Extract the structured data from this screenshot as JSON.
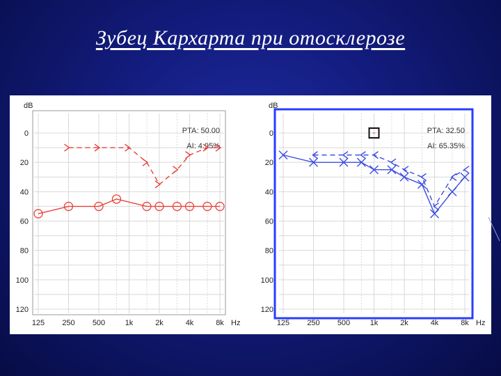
{
  "slide": {
    "title": "Зубец Кархарта при отосклерозе"
  },
  "chart_data": [
    {
      "type": "line",
      "ylabel": "dB",
      "xunit": "Hz",
      "y_ticks": [
        "0",
        "20",
        "40",
        "60",
        "80",
        "100",
        "120"
      ],
      "ylim": [
        0,
        120
      ],
      "y_inverted": true,
      "x_ticks": [
        "125",
        "250",
        "500",
        "1k",
        "2k",
        "4k",
        "8k"
      ],
      "x_scale": "log",
      "grid": true,
      "color": "#e8423a",
      "frame_color": "#9a9a9a",
      "annotations": [
        "PTA: 50.00",
        "AI: 4.95%"
      ],
      "series": [
        {
          "marker": "circle",
          "line": "solid",
          "points": [
            [
              125,
              55
            ],
            [
              250,
              50
            ],
            [
              500,
              50
            ],
            [
              750,
              45
            ],
            [
              1500,
              50
            ],
            [
              2000,
              50
            ],
            [
              3000,
              50
            ],
            [
              4000,
              50
            ],
            [
              6000,
              50
            ],
            [
              8000,
              50
            ]
          ]
        },
        {
          "marker": "chevron",
          "line": "dashed",
          "points": [
            [
              250,
              10
            ],
            [
              500,
              10
            ],
            [
              1000,
              10
            ],
            [
              1500,
              20
            ],
            [
              2000,
              35
            ],
            [
              3000,
              25
            ],
            [
              4000,
              15
            ],
            [
              6000,
              10
            ],
            [
              8000,
              10
            ]
          ]
        }
      ]
    },
    {
      "type": "line",
      "ylabel": "dB",
      "xunit": "Hz",
      "y_ticks": [
        "0",
        "20",
        "40",
        "60",
        "80",
        "100",
        "120"
      ],
      "ylim": [
        0,
        120
      ],
      "y_inverted": true,
      "x_ticks": [
        "125",
        "250",
        "500",
        "1k",
        "2k",
        "4k",
        "8k"
      ],
      "x_scale": "log",
      "grid": true,
      "color": "#3c4ee0",
      "frame_color": "#2a3cff",
      "annotations": [
        "PTA: 32.50",
        "AI: 65.35%"
      ],
      "series": [
        {
          "marker": "cross",
          "line": "solid",
          "points": [
            [
              125,
              15
            ],
            [
              250,
              20
            ],
            [
              500,
              20
            ],
            [
              750,
              20
            ],
            [
              1000,
              25
            ],
            [
              1500,
              25
            ],
            [
              2000,
              30
            ],
            [
              3000,
              35
            ],
            [
              4000,
              55
            ],
            [
              6000,
              40
            ],
            [
              8000,
              30
            ]
          ]
        },
        {
          "marker": "chevron-left",
          "line": "dashed",
          "points": [
            [
              250,
              15
            ],
            [
              500,
              15
            ],
            [
              750,
              15
            ],
            [
              1000,
              15
            ],
            [
              1500,
              20
            ],
            [
              2000,
              25
            ],
            [
              3000,
              30
            ],
            [
              4000,
              50
            ],
            [
              6000,
              30
            ],
            [
              8000,
              25
            ]
          ]
        }
      ]
    }
  ]
}
